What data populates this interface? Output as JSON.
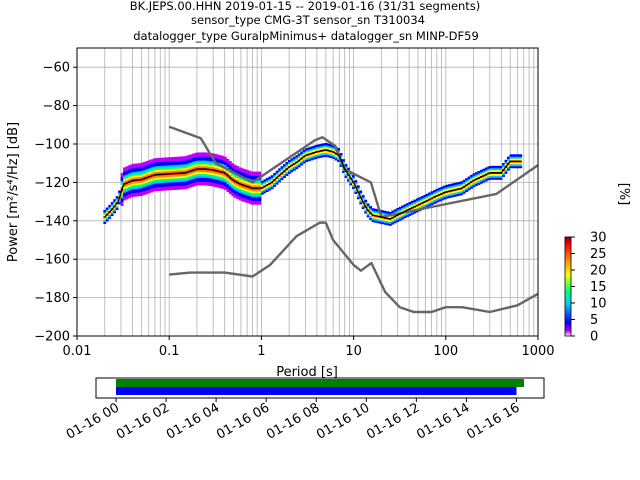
{
  "chart_data": {
    "type": "heatmap",
    "title_lines": [
      "BK.JEPS.00.HHN   2019-01-15 -- 2019-01-16  (31/31 segments)",
      "sensor_type CMG-3T sensor_sn T310034",
      "datalogger_type GuralpMinimus+ datalogger_sn MINP-DF59"
    ],
    "xlabel": "Period [s]",
    "ylabel": "Power [m²/s⁴/Hz] [dB]",
    "xscale": "log",
    "xlim": [
      0.01,
      1000
    ],
    "ylim": [
      -200,
      -50
    ],
    "grid": true,
    "x_ticks": [
      {
        "value": 0.01,
        "label": "0.01"
      },
      {
        "value": 0.1,
        "label": "0.1"
      },
      {
        "value": 1,
        "label": "1"
      },
      {
        "value": 10,
        "label": "10"
      },
      {
        "value": 100,
        "label": "100"
      },
      {
        "value": 1000,
        "label": "1000"
      }
    ],
    "y_ticks": [
      {
        "value": -60,
        "label": "−60"
      },
      {
        "value": -80,
        "label": "−80"
      },
      {
        "value": -100,
        "label": "−100"
      },
      {
        "value": -120,
        "label": "−120"
      },
      {
        "value": -140,
        "label": "−140"
      },
      {
        "value": -160,
        "label": "−160"
      },
      {
        "value": -180,
        "label": "−180"
      },
      {
        "value": -200,
        "label": "−200"
      }
    ],
    "colorbar": {
      "label": "[%]",
      "range": [
        0,
        30
      ],
      "ticks": [
        {
          "value": 0,
          "label": "0"
        },
        {
          "value": 5,
          "label": "5"
        },
        {
          "value": 10,
          "label": "10"
        },
        {
          "value": 15,
          "label": "15"
        },
        {
          "value": 20,
          "label": "20"
        },
        {
          "value": 25,
          "label": "25"
        },
        {
          "value": 30,
          "label": "30"
        }
      ]
    },
    "series": [
      {
        "role": "high-noise-model",
        "color": "#666666",
        "points": [
          [
            0.1,
            -91
          ],
          [
            0.22,
            -97
          ],
          [
            0.32,
            -110
          ],
          [
            0.8,
            -120
          ],
          [
            3.8,
            -98
          ],
          [
            4.6,
            -96.5
          ],
          [
            6.3,
            -101
          ],
          [
            7.9,
            -113
          ],
          [
            15.4,
            -120
          ],
          [
            20,
            -138
          ],
          [
            354.8,
            -126
          ],
          [
            1000,
            -111
          ]
        ]
      },
      {
        "role": "low-noise-model",
        "color": "#666666",
        "points": [
          [
            0.1,
            -168
          ],
          [
            0.17,
            -167
          ],
          [
            0.4,
            -167
          ],
          [
            0.8,
            -169
          ],
          [
            1.24,
            -163
          ],
          [
            2.4,
            -148
          ],
          [
            4.3,
            -141
          ],
          [
            5,
            -141
          ],
          [
            6,
            -150
          ],
          [
            10,
            -163
          ],
          [
            12,
            -166
          ],
          [
            15.6,
            -162
          ],
          [
            21.9,
            -177
          ],
          [
            31.6,
            -185
          ],
          [
            45,
            -187.5
          ],
          [
            70,
            -187.5
          ],
          [
            100,
            -185
          ],
          [
            150,
            -185
          ],
          [
            300,
            -187.5
          ],
          [
            600,
            -184
          ],
          [
            1000,
            -178
          ]
        ]
      },
      {
        "role": "mode-curve",
        "color": "#000000",
        "points": [
          [
            0.02,
            -138
          ],
          [
            0.022,
            -136
          ],
          [
            0.025,
            -133
          ],
          [
            0.028,
            -130
          ],
          [
            0.032,
            -121
          ],
          [
            0.04,
            -119
          ],
          [
            0.05,
            -118.5
          ],
          [
            0.07,
            -116
          ],
          [
            0.1,
            -115.5
          ],
          [
            0.15,
            -115
          ],
          [
            0.2,
            -113
          ],
          [
            0.25,
            -113
          ],
          [
            0.3,
            -113.5
          ],
          [
            0.4,
            -115
          ],
          [
            0.5,
            -119
          ],
          [
            0.6,
            -121
          ],
          [
            0.8,
            -123
          ],
          [
            1.0,
            -123
          ],
          [
            1.3,
            -120
          ],
          [
            1.6,
            -116
          ],
          [
            2,
            -112
          ],
          [
            2.5,
            -109
          ],
          [
            3,
            -106
          ],
          [
            4,
            -104
          ],
          [
            5,
            -103
          ],
          [
            6,
            -104
          ],
          [
            7,
            -106
          ],
          [
            8,
            -113
          ],
          [
            10,
            -120
          ],
          [
            12,
            -128
          ],
          [
            14,
            -134
          ],
          [
            16,
            -137
          ],
          [
            20,
            -138
          ],
          [
            25,
            -139
          ],
          [
            30,
            -137
          ],
          [
            40,
            -134
          ],
          [
            60,
            -130
          ],
          [
            80,
            -127
          ],
          [
            100,
            -125
          ],
          [
            150,
            -123
          ],
          [
            200,
            -119
          ],
          [
            300,
            -115
          ],
          [
            400,
            -115
          ],
          [
            500,
            -109
          ],
          [
            650,
            -109
          ]
        ]
      }
    ],
    "psd_density_extent": {
      "x": [
        0.02,
        650
      ],
      "y": [
        -142,
        -103
      ]
    }
  },
  "time_axis": {
    "tick_labels": [
      "01-16 00",
      "01-16 02",
      "01-16 04",
      "01-16 06",
      "01-16 08",
      "01-16 10",
      "01-16 12",
      "01-16 14",
      "01-16 16"
    ],
    "range_hours": [
      -0.8,
      17.1
    ],
    "bars": [
      {
        "color": "#008000",
        "start_h": 0,
        "end_h": 16.3
      },
      {
        "color": "#0000ff",
        "start_h": 0,
        "end_h": 16.0
      }
    ]
  }
}
